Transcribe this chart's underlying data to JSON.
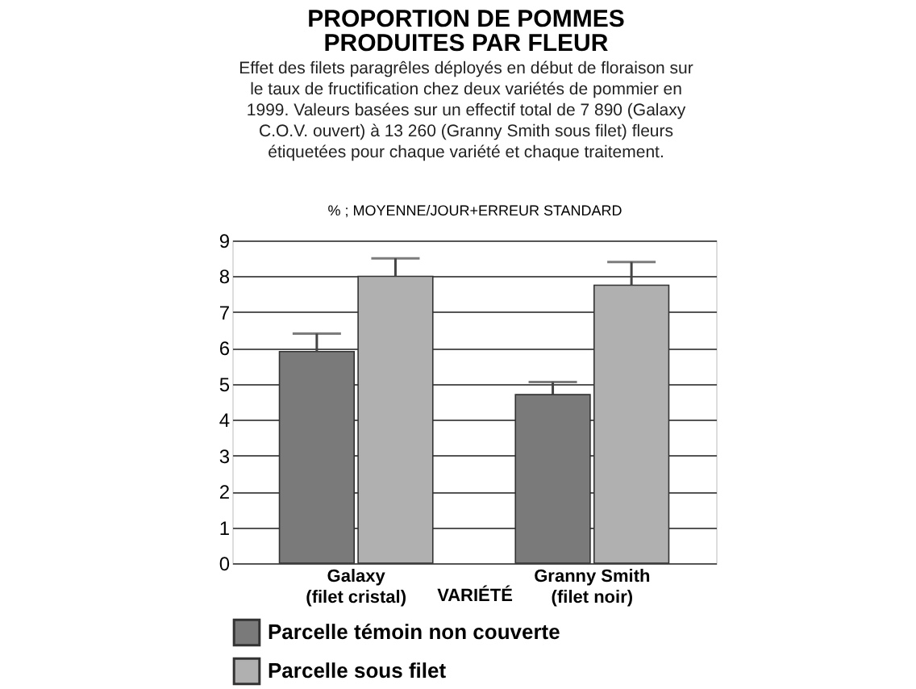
{
  "chart_data": {
    "type": "bar",
    "title": "PROPORTION DE POMMES PRODUITES PAR FLEUR",
    "subtitle": "Effet des filets paragrêles déployés en début de floraison sur le taux de fructification chez deux variétés de pommier en 1999. Valeurs basées sur un effectif total de 7 890 (Galaxy C.O.V. ouvert) à 13 260 (Granny Smith sous filet) fleurs étiquetées pour chaque variété et chaque traitement.",
    "ylabel": "% ; MOYENNE/JOUR+ERREUR STANDARD",
    "xlabel": "VARIÉTÉ",
    "categories": [
      "Galaxy\n(filet cristal)",
      "Granny Smith\n(filet noir)"
    ],
    "series": [
      {
        "name": "Parcelle témoin non couverte",
        "color": "#7a7a7a",
        "values": [
          5.9,
          4.7
        ],
        "errors": [
          [
            5.9,
            6.4
          ],
          [
            4.7,
            5.05
          ]
        ]
      },
      {
        "name": "Parcelle sous filet",
        "color": "#b0b0b0",
        "values": [
          8.0,
          7.75
        ],
        "errors": [
          [
            8.0,
            8.5
          ],
          [
            7.75,
            8.4
          ]
        ]
      }
    ],
    "ylim": [
      0,
      9
    ],
    "yticks": [
      0,
      1,
      2,
      3,
      4,
      5,
      6,
      7,
      8,
      9
    ],
    "grid": "y",
    "legend": "bottom left"
  }
}
